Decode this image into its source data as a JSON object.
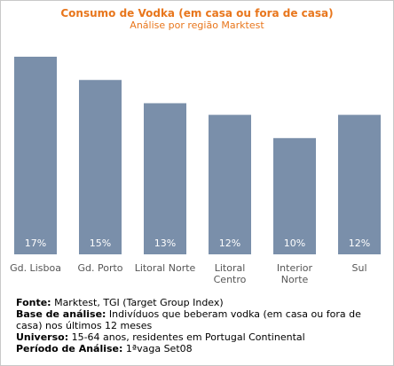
{
  "title": "Consumo de Vodka (em casa ou fora de casa)",
  "subtitle": "Análise por região Marktest",
  "colors": {
    "title": "#e8761c",
    "bar": "#7a8faa",
    "bar_label": "#ffffff",
    "category_label": "#555555"
  },
  "chart_data": {
    "type": "bar",
    "categories": [
      "Gd. Lisboa",
      "Gd. Porto",
      "Litoral Norte",
      "Litoral Centro",
      "Interior Norte",
      "Sul"
    ],
    "category_lines": [
      [
        "Gd. Lisboa"
      ],
      [
        "Gd. Porto"
      ],
      [
        "Litoral Norte"
      ],
      [
        "Litoral",
        "Centro"
      ],
      [
        "Interior",
        "Norte"
      ],
      [
        "Sul"
      ]
    ],
    "values": [
      17,
      15,
      13,
      12,
      10,
      12
    ],
    "value_labels": [
      "17%",
      "15%",
      "13%",
      "12%",
      "10%",
      "12%"
    ],
    "unit": "%",
    "ylim": [
      0,
      17
    ],
    "grid": false,
    "legend": "none"
  },
  "footer": {
    "source_label": "Fonte:",
    "source_text": " Marktest, TGI (Target Group Index)",
    "base_label": "Base de análise:",
    "base_text": " Indivíduos que beberam vodka (em casa ou fora de casa) nos últimos 12 meses",
    "universe_label": "Universo:",
    "universe_text": " 15-64 anos, residentes em Portugal Continental",
    "period_label": "Período de Análise:",
    "period_text": " 1ªvaga Set08"
  }
}
